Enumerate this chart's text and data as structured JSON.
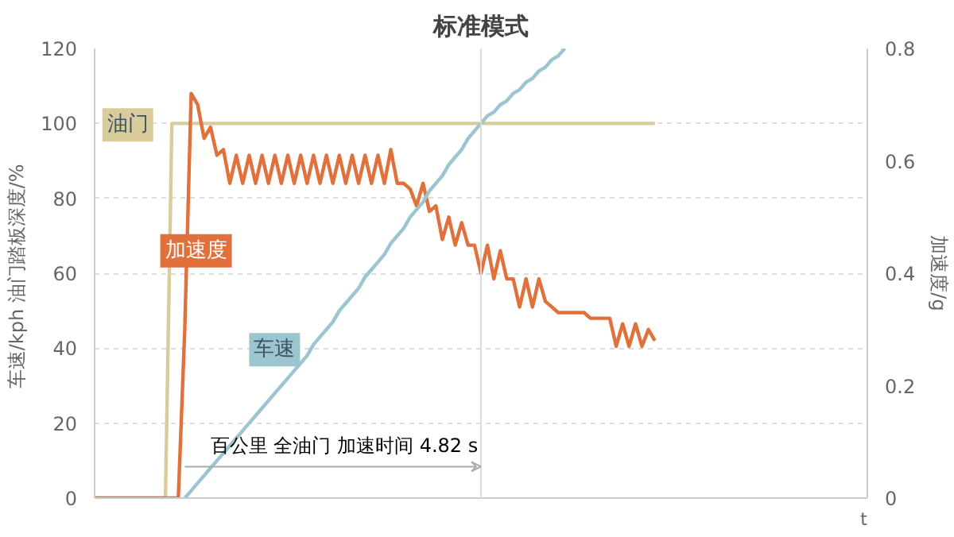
{
  "chart_data": {
    "type": "line",
    "title": "标准模式",
    "xlabel": "t",
    "ylabel": "车速/kph  油门踏板深度/%",
    "y2label": "加速度/g",
    "categories": [
      null,
      null,
      null,
      null,
      null,
      null,
      null,
      null,
      null,
      null,
      null,
      null,
      null,
      null,
      null,
      null,
      null,
      null,
      null,
      null,
      null,
      null,
      null,
      null,
      null,
      null,
      null,
      null,
      null,
      null,
      null,
      null,
      null,
      null,
      null,
      null,
      null,
      null,
      null,
      null,
      null,
      null,
      null,
      null,
      null,
      null,
      null,
      null,
      null,
      null,
      null,
      null,
      null,
      null,
      null,
      null,
      null,
      null,
      null,
      null,
      null,
      null,
      null,
      null,
      null,
      null,
      null,
      null,
      null,
      null,
      null,
      null,
      null,
      null,
      null,
      null,
      null,
      null,
      null,
      null,
      null,
      null,
      null,
      null,
      null,
      null,
      null,
      null,
      null,
      null,
      null,
      null,
      null,
      null,
      null,
      null,
      null,
      null,
      null,
      null,
      null,
      null,
      null,
      null,
      null,
      null,
      null,
      null,
      null,
      null,
      null,
      null,
      null,
      null,
      null,
      null,
      null,
      null,
      null,
      null,
      null
    ],
    "ylim": [
      0,
      120
    ],
    "yticks": [
      0,
      20,
      40,
      60,
      80,
      100,
      120
    ],
    "y2lim": [
      0,
      0.8
    ],
    "y2ticks": [
      0,
      0.2,
      0.4,
      0.6,
      0.8
    ],
    "grid": "y",
    "series": [
      {
        "name": "油门",
        "color": "#d9cc9c",
        "values": [
          0,
          0,
          0,
          0,
          0,
          0,
          0,
          0,
          0,
          0,
          0,
          0,
          100,
          100,
          100,
          100,
          100,
          100,
          100,
          100,
          100,
          100,
          100,
          100,
          100,
          100,
          100,
          100,
          100,
          100,
          100,
          100,
          100,
          100,
          100,
          100,
          100,
          100,
          100,
          100,
          100,
          100,
          100,
          100,
          100,
          100,
          100,
          100,
          100,
          100,
          100,
          100,
          100,
          100,
          100,
          100,
          100,
          100,
          100,
          100,
          100,
          100,
          100,
          100,
          100,
          100,
          100,
          100,
          100,
          100,
          100,
          100,
          100,
          100,
          100,
          100,
          100,
          100,
          100,
          100,
          100,
          100,
          100,
          100,
          100,
          100,
          100,
          100,
          null,
          null,
          null,
          null,
          null,
          null,
          null,
          null,
          null,
          null,
          null,
          null,
          null,
          null,
          null,
          null,
          null,
          null,
          null,
          null,
          null,
          null,
          null,
          null,
          null,
          null,
          null,
          null,
          null,
          null,
          null,
          null,
          null
        ]
      },
      {
        "name": "加速度",
        "color": "#e0703c",
        "axis": "y2",
        "values": [
          0,
          0,
          0,
          0,
          0,
          0,
          0,
          0,
          0,
          0,
          0,
          0,
          0,
          0,
          0.3,
          0.72,
          0.7,
          0.64,
          0.66,
          0.61,
          0.62,
          0.56,
          0.61,
          0.56,
          0.61,
          0.56,
          0.61,
          0.56,
          0.61,
          0.56,
          0.61,
          0.56,
          0.61,
          0.56,
          0.61,
          0.56,
          0.61,
          0.56,
          0.61,
          0.56,
          0.61,
          0.56,
          0.61,
          0.56,
          0.61,
          0.56,
          0.62,
          0.56,
          0.56,
          0.55,
          0.52,
          0.56,
          0.51,
          0.52,
          0.46,
          0.5,
          0.45,
          0.49,
          0.45,
          0.45,
          0.4,
          0.45,
          0.39,
          0.44,
          0.39,
          0.39,
          0.34,
          0.39,
          0.34,
          0.39,
          0.35,
          0.34,
          0.33,
          0.33,
          0.33,
          0.33,
          0.33,
          0.32,
          0.32,
          0.32,
          0.32,
          0.27,
          0.31,
          0.27,
          0.31,
          0.27,
          0.3,
          0.28,
          null,
          null,
          null,
          null,
          null,
          null,
          null,
          null,
          null,
          null,
          null,
          null,
          null,
          null,
          null,
          null,
          null,
          null,
          null,
          null,
          null,
          null,
          null,
          null,
          null,
          null,
          null,
          null,
          null,
          null,
          null,
          null,
          null
        ]
      },
      {
        "name": "车速",
        "color": "#9cc5d0",
        "values": [
          null,
          null,
          null,
          null,
          null,
          null,
          null,
          null,
          null,
          null,
          null,
          null,
          null,
          null,
          0,
          2,
          4,
          6,
          8,
          10,
          12,
          14,
          16,
          18,
          20,
          22,
          24,
          26,
          28,
          30,
          32,
          34,
          36,
          38,
          41,
          43,
          45,
          47,
          50,
          52,
          54,
          56,
          59,
          61,
          63,
          65,
          68,
          70,
          72,
          75,
          77,
          79,
          82,
          84,
          86,
          89,
          91,
          93,
          96,
          98,
          100,
          102,
          103,
          105,
          106,
          108,
          109,
          111,
          112,
          114,
          115,
          117,
          118,
          120,
          null,
          null,
          null,
          null,
          null,
          null,
          null,
          null,
          null,
          null,
          null,
          null,
          null,
          null,
          null,
          null,
          null,
          null,
          null,
          null,
          null,
          null,
          null,
          null,
          null,
          null,
          null,
          null,
          null,
          null,
          null,
          null,
          null,
          null,
          null,
          null,
          null,
          null,
          null,
          null,
          null,
          null,
          null,
          null,
          null,
          null,
          null
        ]
      }
    ],
    "annotations": [
      "百公里 全油门 加速时间 4.82 s"
    ]
  }
}
